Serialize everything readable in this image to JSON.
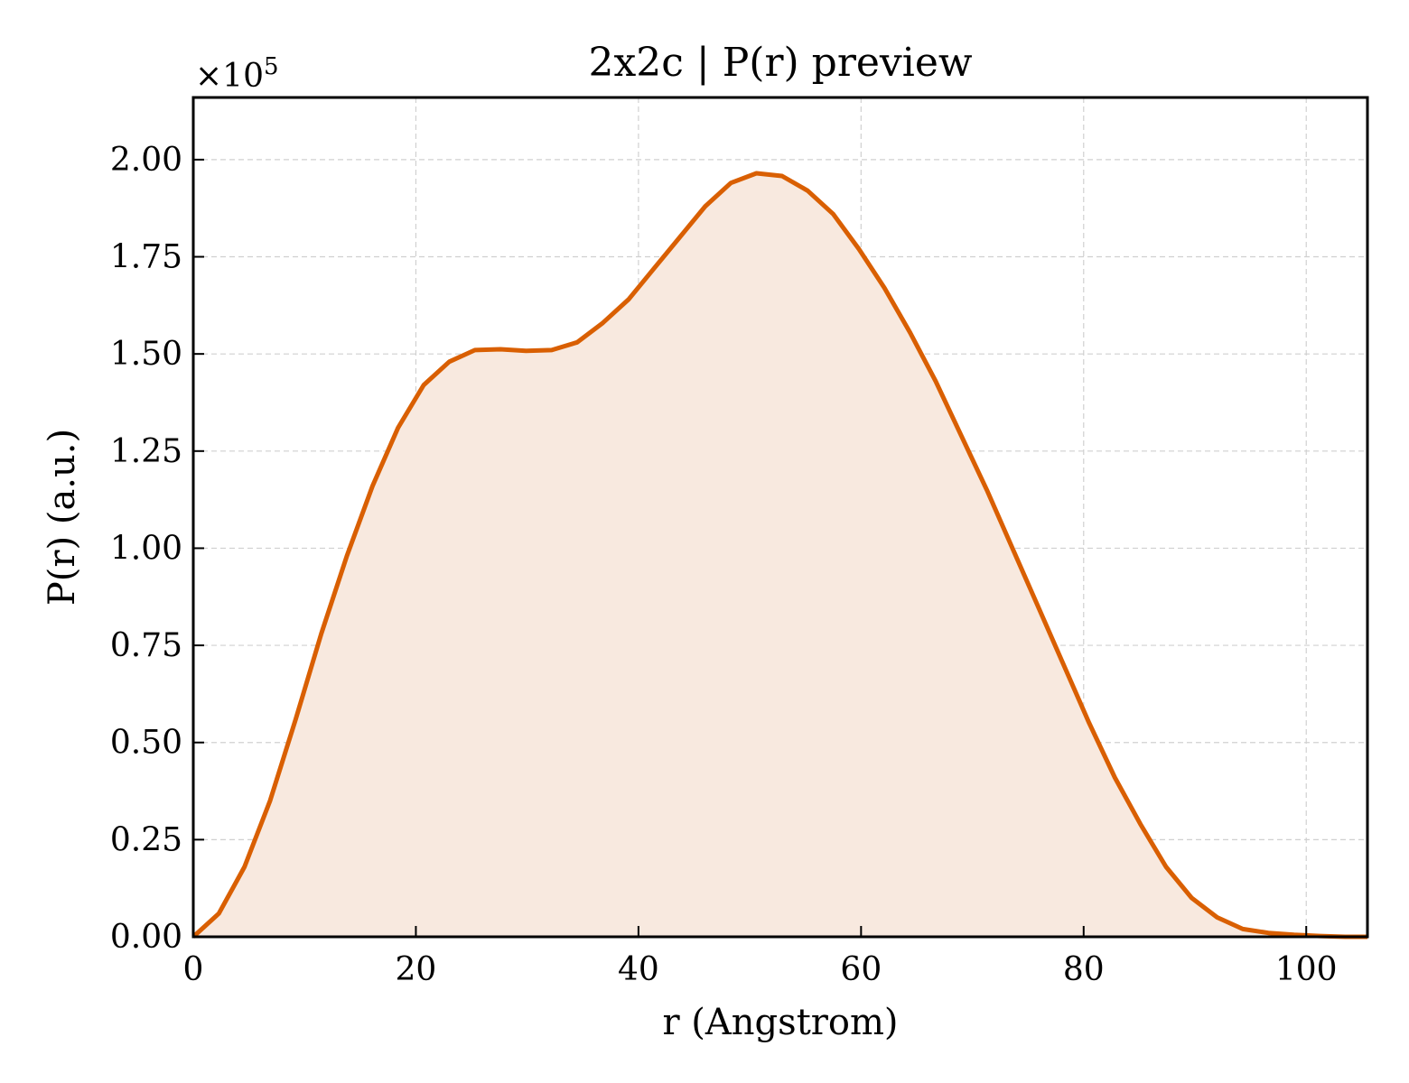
{
  "chart_data": {
    "type": "area",
    "title": "2x2c | P(r) preview",
    "xlabel": "r (Angstrom)",
    "ylabel": "P(r) (a.u.)",
    "y_multiplier": "×10",
    "y_multiplier_exponent": "5",
    "xlim": [
      0,
      105.5
    ],
    "ylim": [
      0,
      2.16
    ],
    "xticks": [
      0,
      20,
      40,
      60,
      80,
      100
    ],
    "xtick_labels": [
      "0",
      "20",
      "40",
      "60",
      "80",
      "100"
    ],
    "yticks": [
      0,
      0.25,
      0.5,
      0.75,
      1.0,
      1.25,
      1.5,
      1.75,
      2.0
    ],
    "ytick_labels": [
      "0.00",
      "0.25",
      "0.50",
      "0.75",
      "1.00",
      "1.25",
      "1.50",
      "1.75",
      "2.00"
    ],
    "grid": true,
    "colors": {
      "line": "#d95f02",
      "fill": "#f8e9df"
    },
    "series": [
      {
        "x": [
          0,
          2.3,
          4.6,
          6.9,
          9.2,
          11.5,
          13.8,
          16.1,
          18.4,
          20.7,
          23.0,
          25.3,
          27.6,
          29.9,
          32.2,
          34.5,
          36.8,
          39.1,
          41.4,
          43.7,
          46.0,
          48.3,
          50.6,
          52.9,
          55.2,
          57.5,
          59.8,
          62.1,
          64.4,
          66.7,
          69.0,
          71.3,
          73.6,
          75.9,
          78.2,
          80.5,
          82.8,
          85.1,
          87.4,
          89.7,
          92.0,
          94.3,
          96.6,
          98.9,
          101.2,
          103.5,
          105.5
        ],
        "y": [
          0,
          0.06,
          0.18,
          0.35,
          0.56,
          0.78,
          0.98,
          1.16,
          1.31,
          1.42,
          1.48,
          1.51,
          1.512,
          1.508,
          1.51,
          1.53,
          1.58,
          1.64,
          1.72,
          1.8,
          1.88,
          1.94,
          1.965,
          1.958,
          1.92,
          1.86,
          1.77,
          1.67,
          1.555,
          1.43,
          1.29,
          1.15,
          1.0,
          0.85,
          0.7,
          0.55,
          0.41,
          0.29,
          0.18,
          0.1,
          0.05,
          0.02,
          0.01,
          0.005,
          0.002,
          0.0,
          0.0
        ]
      }
    ]
  }
}
